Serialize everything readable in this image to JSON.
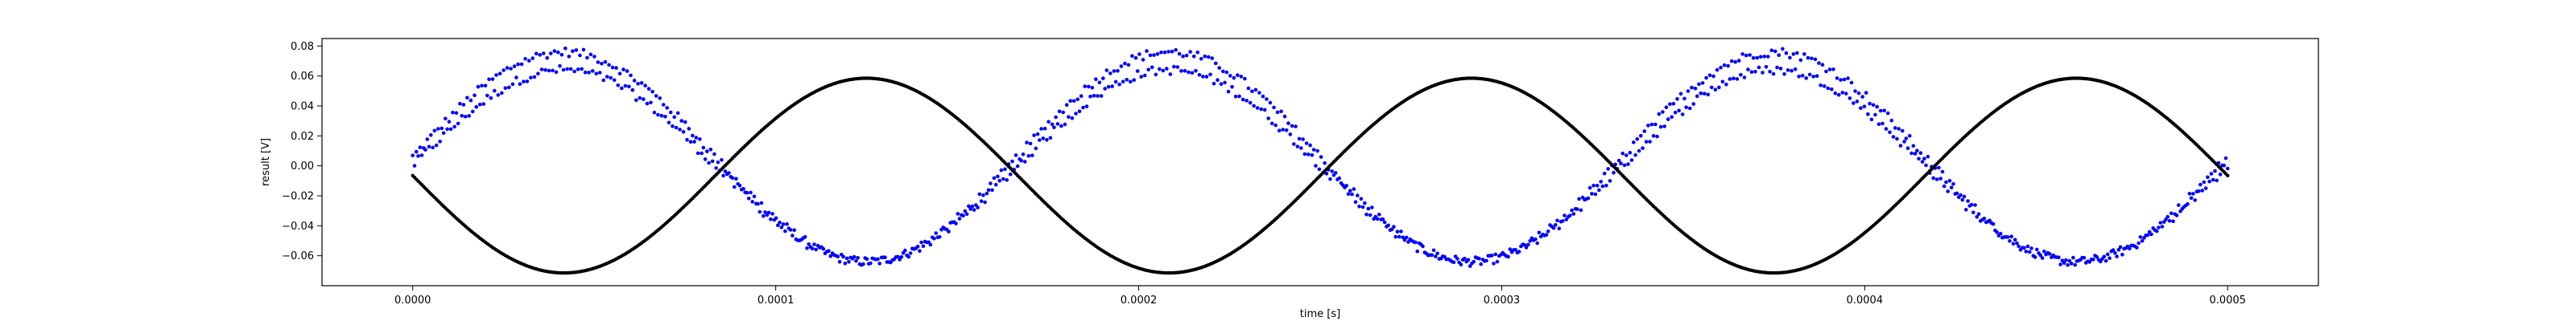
{
  "chart_data": {
    "type": "scatter",
    "title": "",
    "xlabel": "time [s]",
    "ylabel": "result [V]",
    "xlim": [
      -2.5e-05,
      0.000525
    ],
    "ylim": [
      -0.08,
      0.085
    ],
    "grid": false,
    "x_ticks": [
      "0.0000",
      "0.0001",
      "0.0002",
      "0.0003",
      "0.0004",
      "0.0005"
    ],
    "y_ticks": [
      "0.08",
      "0.06",
      "0.04",
      "0.02",
      "0.00",
      "−0.02",
      "−0.04",
      "−0.06"
    ],
    "x_tick_values": [
      0,
      0.0001,
      0.0002,
      0.0003,
      0.0004,
      0.0005
    ],
    "y_tick_values": [
      0.08,
      0.06,
      0.04,
      0.02,
      0.0,
      -0.02,
      -0.04,
      -0.06
    ],
    "x_range": [
      0,
      0.0005
    ],
    "series": [
      {
        "color": "#0000ff",
        "marker": "dot",
        "sample_count": 1000,
        "description": "sinusoid, two interleaved bands",
        "period": 0.000166667,
        "band_upper": {
          "offset": 0.006,
          "amplitude": 0.07,
          "phase_zero_x": 0.0
        },
        "band_lower": {
          "offset": 0.0,
          "amplitude": 0.064,
          "phase_zero_x": 0.0
        },
        "start_value": 0.005,
        "end_value": 0.005
      },
      {
        "color": "#000000",
        "marker": "dot",
        "sample_count": 1000,
        "description": "smooth sinusoid",
        "period": 0.000166667,
        "offset": -0.0065,
        "amplitude": 0.065,
        "start_value": -0.006,
        "end_value": -0.006
      }
    ]
  }
}
